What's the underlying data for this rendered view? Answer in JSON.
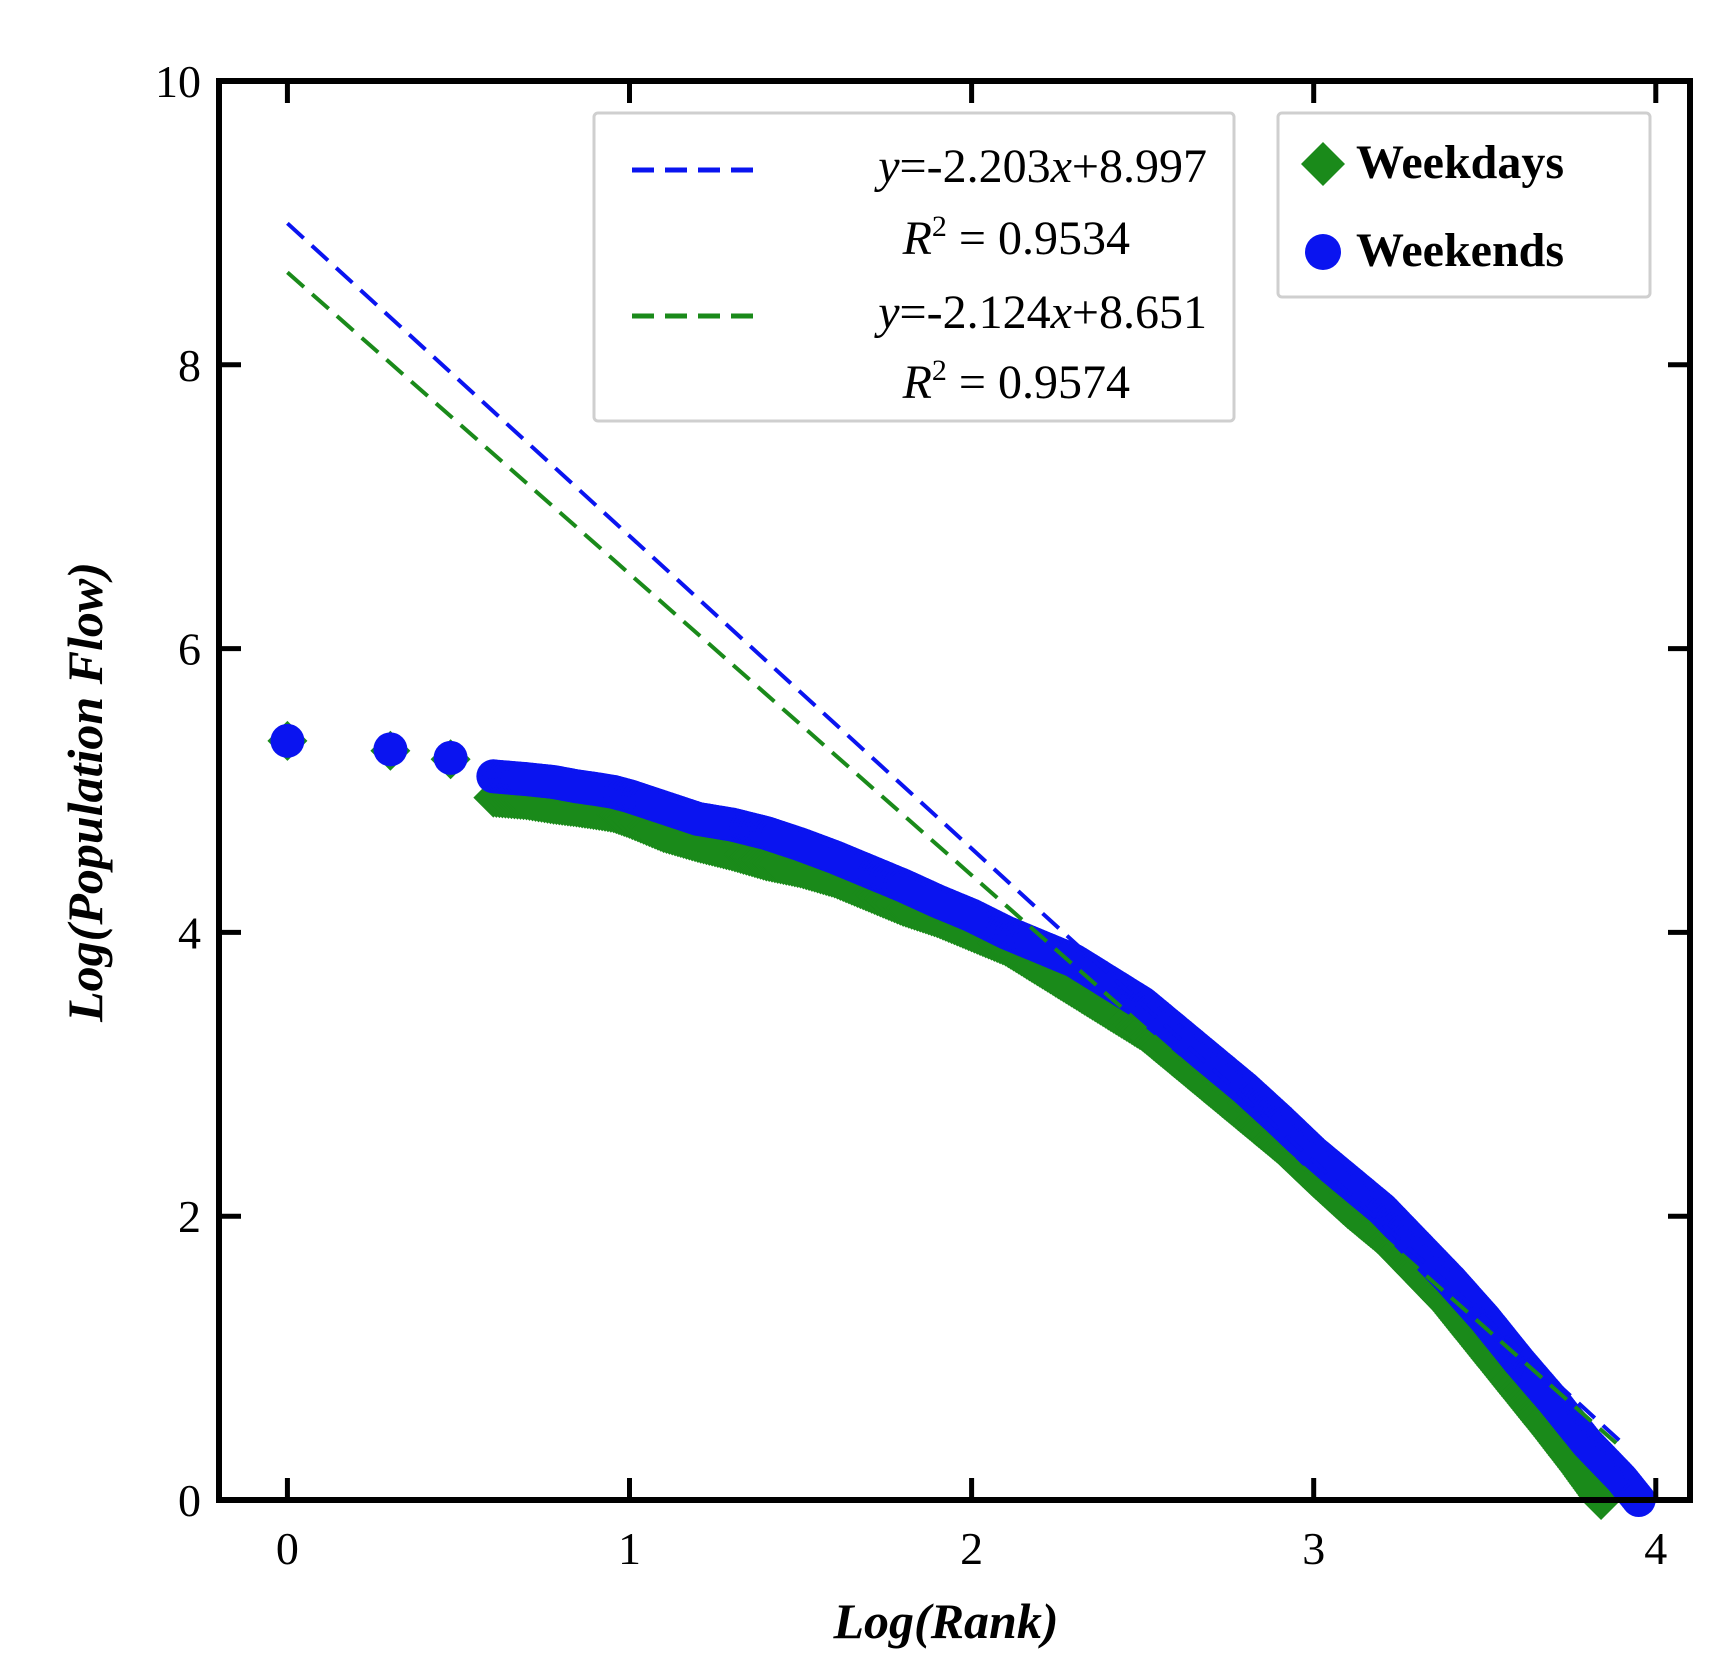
{
  "chart_data": {
    "type": "scatter",
    "title": "",
    "xlabel": "Log(Rank)",
    "ylabel": "Log(Population Flow)",
    "xlim": [
      -0.2,
      4.1
    ],
    "ylim": [
      0,
      10
    ],
    "xticks": [
      "0",
      "1",
      "2",
      "3",
      "4"
    ],
    "yticks": [
      "0",
      "2",
      "4",
      "6",
      "8",
      "10"
    ],
    "grid": false,
    "series": [
      {
        "name": "Weekdays",
        "marker": "diamond",
        "color": "#1a8a1a",
        "points": [
          [
            0,
            5.35
          ],
          [
            0.301,
            5.28
          ],
          [
            0.477,
            5.22
          ],
          [
            0.602,
            4.95
          ],
          [
            0.699,
            4.93
          ],
          [
            0.778,
            4.9
          ],
          [
            0.845,
            4.88
          ],
          [
            0.903,
            4.86
          ],
          [
            0.954,
            4.84
          ],
          [
            1.0,
            4.8
          ],
          [
            1.1,
            4.7
          ],
          [
            1.2,
            4.63
          ],
          [
            1.3,
            4.57
          ],
          [
            1.4,
            4.5
          ],
          [
            1.5,
            4.45
          ],
          [
            1.6,
            4.38
          ],
          [
            1.7,
            4.28
          ],
          [
            1.8,
            4.18
          ],
          [
            1.9,
            4.1
          ],
          [
            2.0,
            4.0
          ],
          [
            2.1,
            3.9
          ],
          [
            2.2,
            3.75
          ],
          [
            2.3,
            3.6
          ],
          [
            2.4,
            3.45
          ],
          [
            2.5,
            3.3
          ],
          [
            2.6,
            3.1
          ],
          [
            2.7,
            2.9
          ],
          [
            2.8,
            2.7
          ],
          [
            2.9,
            2.5
          ],
          [
            3.0,
            2.27
          ],
          [
            3.1,
            2.05
          ],
          [
            3.2,
            1.85
          ],
          [
            3.3,
            1.6
          ],
          [
            3.4,
            1.35
          ],
          [
            3.5,
            1.05
          ],
          [
            3.6,
            0.75
          ],
          [
            3.7,
            0.45
          ],
          [
            3.78,
            0.2
          ],
          [
            3.84,
            0.0
          ]
        ]
      },
      {
        "name": "Weekends",
        "marker": "circle",
        "color": "#0a14f0",
        "points": [
          [
            0,
            5.35
          ],
          [
            0.301,
            5.29
          ],
          [
            0.477,
            5.23
          ],
          [
            0.602,
            5.1
          ],
          [
            0.699,
            5.08
          ],
          [
            0.778,
            5.06
          ],
          [
            0.845,
            5.03
          ],
          [
            0.903,
            5.01
          ],
          [
            0.954,
            4.99
          ],
          [
            1.0,
            4.96
          ],
          [
            1.1,
            4.88
          ],
          [
            1.2,
            4.8
          ],
          [
            1.3,
            4.76
          ],
          [
            1.4,
            4.7
          ],
          [
            1.5,
            4.62
          ],
          [
            1.6,
            4.53
          ],
          [
            1.7,
            4.43
          ],
          [
            1.8,
            4.33
          ],
          [
            1.9,
            4.22
          ],
          [
            2.0,
            4.12
          ],
          [
            2.1,
            4.0
          ],
          [
            2.2,
            3.9
          ],
          [
            2.3,
            3.8
          ],
          [
            2.4,
            3.65
          ],
          [
            2.5,
            3.5
          ],
          [
            2.6,
            3.3
          ],
          [
            2.7,
            3.1
          ],
          [
            2.8,
            2.9
          ],
          [
            2.9,
            2.68
          ],
          [
            3.0,
            2.45
          ],
          [
            3.1,
            2.25
          ],
          [
            3.2,
            2.05
          ],
          [
            3.3,
            1.8
          ],
          [
            3.4,
            1.55
          ],
          [
            3.5,
            1.28
          ],
          [
            3.6,
            0.98
          ],
          [
            3.7,
            0.7
          ],
          [
            3.8,
            0.4
          ],
          [
            3.9,
            0.15
          ],
          [
            3.95,
            0.0
          ]
        ]
      }
    ],
    "fits": [
      {
        "name": "Weekends fit",
        "color": "#0a14f0",
        "slope": -2.203,
        "intercept": 8.997,
        "x_range": [
          0,
          3.9
        ],
        "eq_y": "y",
        "eq_mid": "=-2.203",
        "eq_x": "x",
        "eq_end": "+8.997",
        "r2_label": "R",
        "r2_sup": "2",
        "r2_value": " = 0.9534"
      },
      {
        "name": "Weekdays fit",
        "color": "#1a8a1a",
        "slope": -2.124,
        "intercept": 8.651,
        "x_range": [
          0,
          3.9
        ],
        "eq_y": "y",
        "eq_mid": "=-2.124",
        "eq_x": "x",
        "eq_end": "+8.651",
        "r2_label": "R",
        "r2_sup": "2",
        "r2_value": " = 0.9574"
      }
    ],
    "legend_position": "top-right",
    "fit_legend_position": "top-center"
  }
}
